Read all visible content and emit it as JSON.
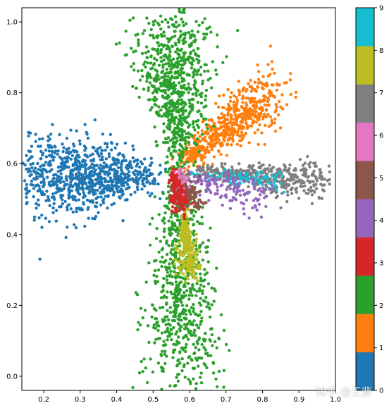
{
  "chart_data": {
    "type": "scatter",
    "title": "",
    "xlabel": "",
    "ylabel": "",
    "xlim": [
      0.14,
      1.0
    ],
    "ylim": [
      -0.04,
      1.04
    ],
    "x_ticks": [
      "0.2",
      "0.3",
      "0.4",
      "0.5",
      "0.6",
      "0.7",
      "0.8",
      "0.9",
      "1.0"
    ],
    "y_ticks": [
      "0.0",
      "0.2",
      "0.4",
      "0.6",
      "0.8",
      "1.0"
    ],
    "grid": false,
    "colormap": "tab10",
    "colorbar": {
      "ticks": [
        "0",
        "1",
        "2",
        "3",
        "4",
        "5",
        "6",
        "7",
        "8",
        "9"
      ],
      "range": [
        0,
        9
      ]
    },
    "clusters": [
      {
        "label": 0,
        "color": "#1f77b4",
        "center": [
          0.5,
          0.57
        ],
        "arm_end": [
          0.18,
          0.56
        ],
        "spread": 0.035,
        "points": 900
      },
      {
        "label": 1,
        "color": "#ff7f0e",
        "center": [
          0.56,
          0.58
        ],
        "arm_end": [
          0.82,
          0.8
        ],
        "spread": 0.02,
        "points": 600
      },
      {
        "label": 2,
        "color": "#2ca02c",
        "center": [
          0.57,
          0.6
        ],
        "arm_end_up": [
          0.55,
          0.97
        ],
        "arm_end_down": [
          0.58,
          0.02
        ],
        "spread": 0.03,
        "points": 1500
      },
      {
        "label": 3,
        "color": "#d62728",
        "center": [
          0.555,
          0.58
        ],
        "arm_end": [
          0.575,
          0.47
        ],
        "spread": 0.008,
        "points": 120
      },
      {
        "label": 4,
        "color": "#9467bd",
        "center": [
          0.6,
          0.56
        ],
        "arm_end": [
          0.8,
          0.5
        ],
        "spread": 0.015,
        "points": 150
      },
      {
        "label": 5,
        "color": "#8c564b",
        "center": [
          0.575,
          0.54
        ],
        "arm_end": [
          0.6,
          0.5
        ],
        "spread": 0.012,
        "points": 200
      },
      {
        "label": 6,
        "color": "#e377c2",
        "center": [
          0.565,
          0.56
        ],
        "arm_end": [
          0.575,
          0.55
        ],
        "spread": 0.007,
        "points": 80
      },
      {
        "label": 7,
        "color": "#7f7f7f",
        "center": [
          0.62,
          0.58
        ],
        "arm_end": [
          0.96,
          0.55
        ],
        "spread": 0.015,
        "points": 400
      },
      {
        "label": 8,
        "color": "#bcbd22",
        "center": [
          0.585,
          0.47
        ],
        "arm_end": [
          0.6,
          0.29
        ],
        "spread": 0.008,
        "points": 250
      },
      {
        "label": 9,
        "color": "#17becf",
        "center": [
          0.6,
          0.57
        ],
        "arm_end": [
          0.85,
          0.55
        ],
        "spread": 0.008,
        "points": 100
      }
    ]
  },
  "watermark": "知乎 @王斐"
}
